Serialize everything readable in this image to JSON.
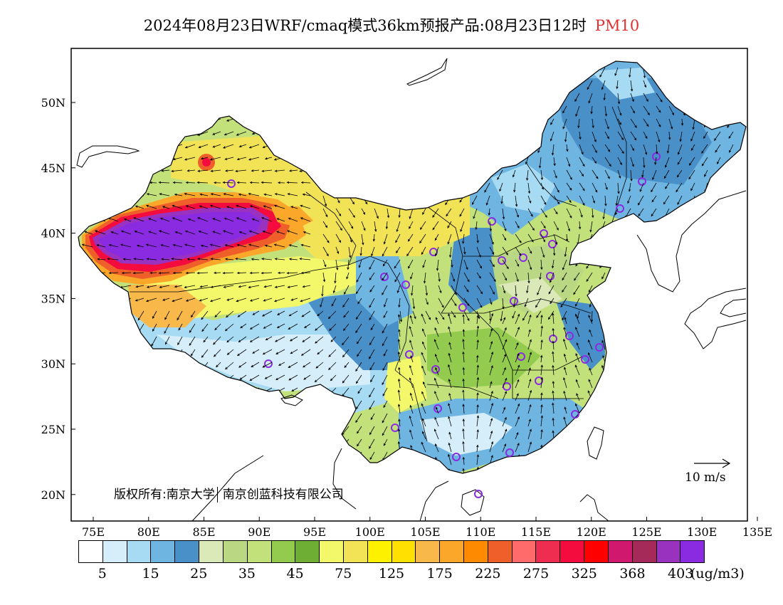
{
  "title": {
    "main": "2024年08月23日WRF/cmaq模式36km预报产品:08月23日12时",
    "pollutant": "PM10"
  },
  "colors": {
    "pollutant_title": "#e03030",
    "ocean": "#ffffff",
    "border": "#000000",
    "station_marker": "#8a2be2"
  },
  "map": {
    "lon_ticks": [
      "75E",
      "80E",
      "85E",
      "90E",
      "95E",
      "100E",
      "105E",
      "110E",
      "115E",
      "120E",
      "125E",
      "130E",
      "135E"
    ],
    "lat_ticks": [
      "50N",
      "45N",
      "40N",
      "35N",
      "30N",
      "25N",
      "20N"
    ]
  },
  "vector_reference": {
    "label": "10 m/s"
  },
  "copyright": {
    "left": "版权所有:南京大学",
    "right": "南京创蓝科技有限公司"
  },
  "colorbar": {
    "colors": [
      "#ffffff",
      "#d5eefa",
      "#a6dbf3",
      "#6eb5e2",
      "#4a90c8",
      "#dbe8b8",
      "#bad883",
      "#c3e17a",
      "#92cb4e",
      "#6fae34",
      "#f2f86a",
      "#f2e356",
      "#fdf100",
      "#ffe000",
      "#f8b94a",
      "#fba82a",
      "#fd8a00",
      "#ef5f2a",
      "#ff6a6a",
      "#ef2d50",
      "#f50c3e",
      "#ff0000",
      "#d0186e",
      "#a52a5a",
      "#9a32c0",
      "#8a2be2"
    ],
    "labels": [
      "5",
      "15",
      "25",
      "35",
      "45",
      "75",
      "125",
      "175",
      "225",
      "275",
      "325",
      "368",
      "403"
    ],
    "unit": "(ug/m3)"
  }
}
